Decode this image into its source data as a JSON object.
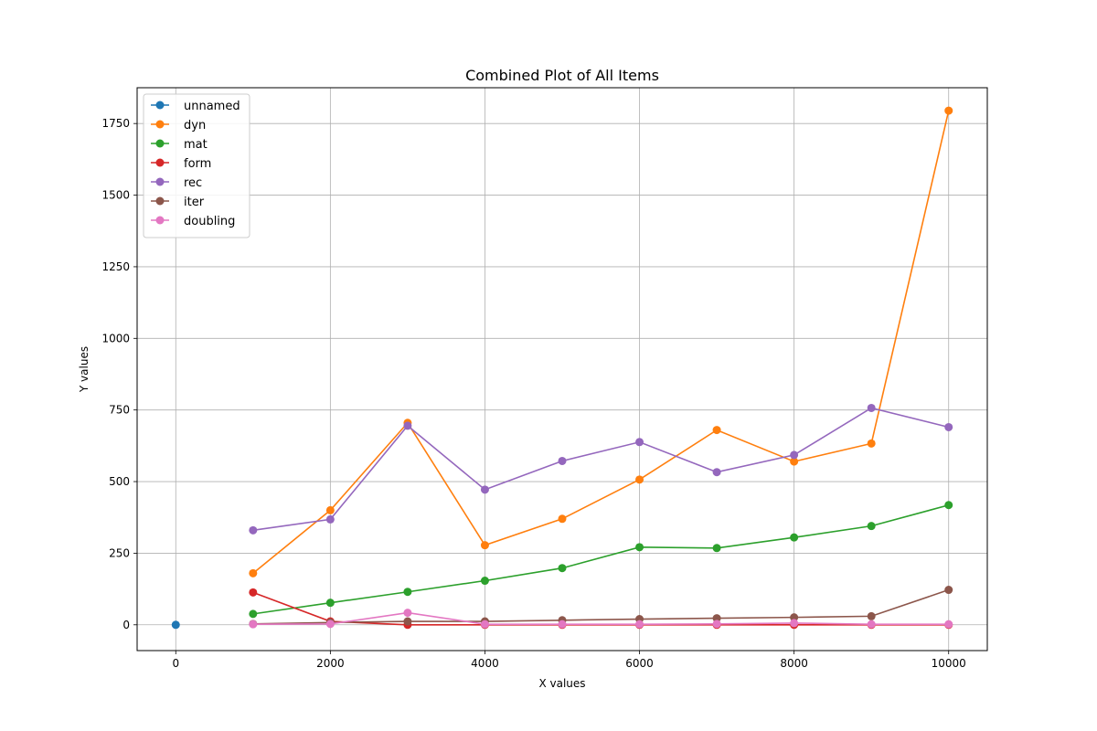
{
  "chart_data": {
    "type": "line",
    "title": "Combined Plot of All Items",
    "xlabel": "X values",
    "ylabel": "Y values",
    "xlim": [
      -500,
      10500
    ],
    "ylim": [
      -90,
      1875
    ],
    "x_ticks": [
      0,
      2000,
      4000,
      6000,
      8000,
      10000
    ],
    "y_ticks": [
      0,
      250,
      500,
      750,
      1000,
      1250,
      1500,
      1750
    ],
    "grid": true,
    "legend_position": "top-left",
    "series": [
      {
        "name": "unnamed",
        "color": "#1f77b4",
        "x": [
          0
        ],
        "y": [
          0
        ]
      },
      {
        "name": "dyn",
        "color": "#ff7f0e",
        "x": [
          1000,
          2000,
          3000,
          4000,
          5000,
          6000,
          7000,
          8000,
          9000,
          10000
        ],
        "y": [
          180,
          400,
          705,
          278,
          370,
          507,
          680,
          570,
          633,
          1795
        ]
      },
      {
        "name": "mat",
        "color": "#2ca02c",
        "x": [
          1000,
          2000,
          3000,
          4000,
          5000,
          6000,
          7000,
          8000,
          9000,
          10000
        ],
        "y": [
          38,
          77,
          115,
          154,
          198,
          271,
          268,
          305,
          345,
          418
        ]
      },
      {
        "name": "form",
        "color": "#d62728",
        "x": [
          1000,
          2000,
          3000,
          4000,
          5000,
          6000,
          7000,
          8000,
          9000,
          10000
        ],
        "y": [
          113,
          12,
          0,
          0,
          0,
          0,
          0,
          0,
          0,
          0
        ]
      },
      {
        "name": "rec",
        "color": "#9467bd",
        "x": [
          1000,
          2000,
          3000,
          4000,
          5000,
          6000,
          7000,
          8000,
          9000,
          10000
        ],
        "y": [
          330,
          368,
          695,
          472,
          572,
          638,
          533,
          593,
          757,
          690
        ]
      },
      {
        "name": "iter",
        "color": "#8c564b",
        "x": [
          1000,
          2000,
          3000,
          4000,
          5000,
          6000,
          7000,
          8000,
          9000,
          10000
        ],
        "y": [
          3,
          8,
          12,
          12,
          16,
          20,
          23,
          26,
          30,
          122
        ]
      },
      {
        "name": "doubling",
        "color": "#e377c2",
        "x": [
          1000,
          2000,
          3000,
          4000,
          5000,
          6000,
          7000,
          8000,
          9000,
          10000
        ],
        "y": [
          2,
          3,
          42,
          2,
          2,
          2,
          3,
          6,
          2,
          2
        ]
      }
    ]
  }
}
